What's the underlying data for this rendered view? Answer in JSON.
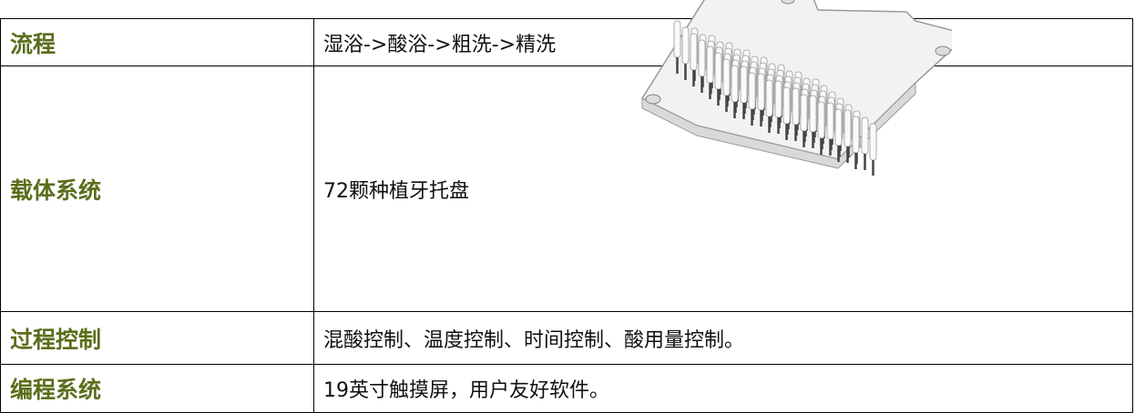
{
  "table": {
    "rows": [
      [
        "流程",
        "湿浴->酸浴->粗洗->精洗"
      ],
      [
        "载体系统",
        "72颗种植牙托盘"
      ],
      [
        "过程控制",
        "混酸控制、温度控制、时间控制、酸用量控制。"
      ],
      [
        "编程系统",
        "19英寸触摸屏，用户友好软件。"
      ]
    ]
  }
}
